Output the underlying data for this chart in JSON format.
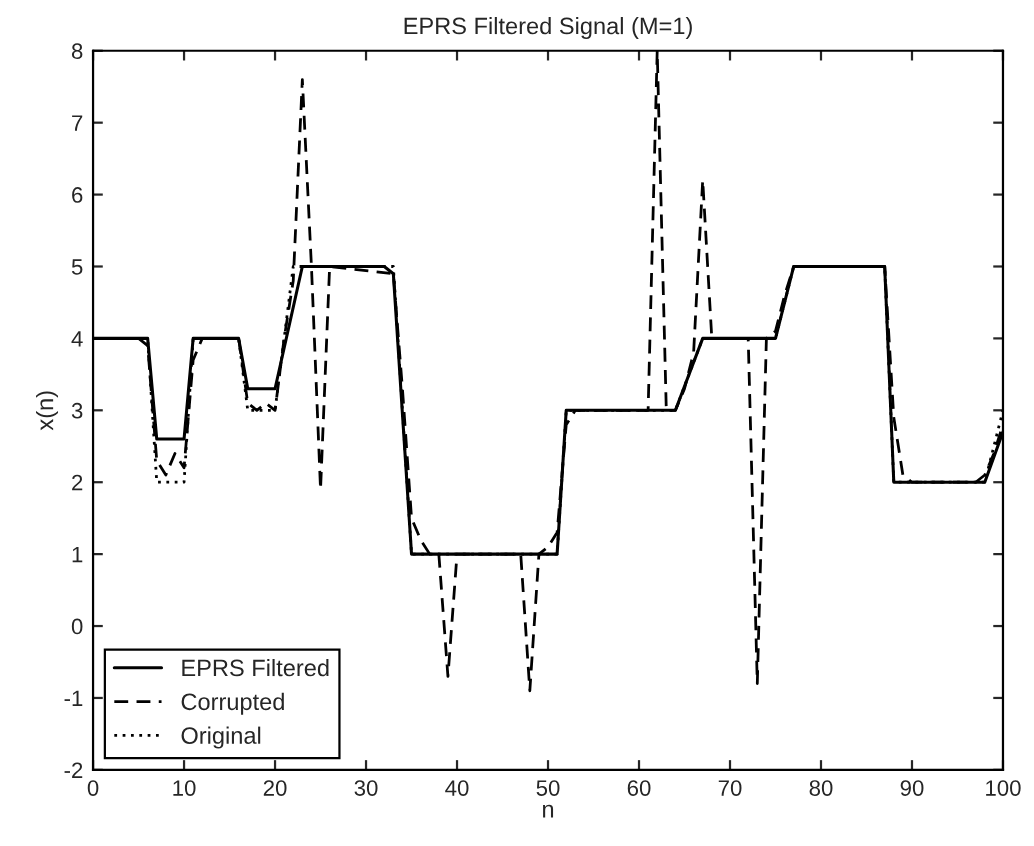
{
  "chart_data": {
    "type": "line",
    "title": "EPRS Filtered Signal (M=1)",
    "xlabel": "n",
    "ylabel": "x(n)",
    "xlim": [
      0,
      100
    ],
    "xticks": [
      0,
      10,
      20,
      30,
      40,
      50,
      60,
      70,
      80,
      90,
      100
    ],
    "ylim": [
      -2,
      8
    ],
    "yticks": [
      -2,
      -1,
      0,
      1,
      2,
      3,
      4,
      5,
      6,
      7,
      8
    ],
    "grid": false,
    "legend": "bottom left",
    "marker": "none",
    "series": [
      {
        "name": "EPRS Filtered",
        "color": "#000000",
        "line_style": "solid",
        "x": [
          0,
          6,
          7,
          10,
          11,
          16,
          17,
          20,
          23,
          32,
          33,
          35,
          51,
          52,
          64,
          67,
          75,
          77,
          87,
          88,
          98,
          100
        ],
        "values": [
          4,
          4,
          2.6,
          2.6,
          4,
          4,
          3.3,
          3.3,
          5,
          5,
          4.9,
          1,
          1,
          3,
          3,
          4,
          4,
          5,
          5,
          2,
          2,
          2.7
        ]
      },
      {
        "name": "Corrupted",
        "color": "#000000",
        "line_style": "dashed",
        "x": [
          0,
          5,
          6,
          7,
          8,
          9,
          10,
          11,
          12,
          16,
          17,
          18,
          19,
          20,
          21,
          22,
          23,
          24,
          25,
          26,
          33,
          34,
          35,
          36,
          37,
          38,
          39,
          40,
          41,
          47,
          48,
          49,
          50,
          51,
          52,
          53,
          61,
          62,
          63,
          64,
          65,
          66,
          67,
          68,
          69,
          72,
          73,
          74,
          75,
          76,
          77,
          87,
          88,
          89,
          90,
          97,
          98,
          99,
          100
        ],
        "values": [
          4,
          4,
          3.9,
          2.3,
          2.1,
          2.4,
          2.2,
          3.7,
          4,
          4,
          3.1,
          3,
          3.1,
          3,
          4,
          4.8,
          7.6,
          5,
          1.9,
          5,
          4.9,
          3.3,
          1.5,
          1.2,
          1,
          1,
          -0.7,
          1,
          1,
          1,
          -0.9,
          1,
          1.1,
          1.3,
          2.8,
          3,
          3,
          8,
          3,
          3,
          3.3,
          3.8,
          6.2,
          4,
          4,
          4,
          -0.8,
          4,
          4.1,
          4.6,
          5,
          5,
          2.9,
          2.1,
          2,
          2,
          2.1,
          2.4,
          2.8
        ]
      },
      {
        "name": "Original",
        "color": "#000000",
        "line_style": "dotted",
        "x": [
          0,
          6,
          7,
          10,
          11,
          16,
          17,
          20,
          22,
          33,
          35,
          51,
          52,
          64,
          67,
          75,
          77,
          87,
          88,
          98,
          100
        ],
        "values": [
          4,
          4,
          2,
          2,
          4,
          4,
          3,
          3,
          5,
          5,
          1,
          1,
          3,
          3,
          4,
          4,
          5,
          5,
          2,
          2,
          3
        ]
      }
    ]
  }
}
